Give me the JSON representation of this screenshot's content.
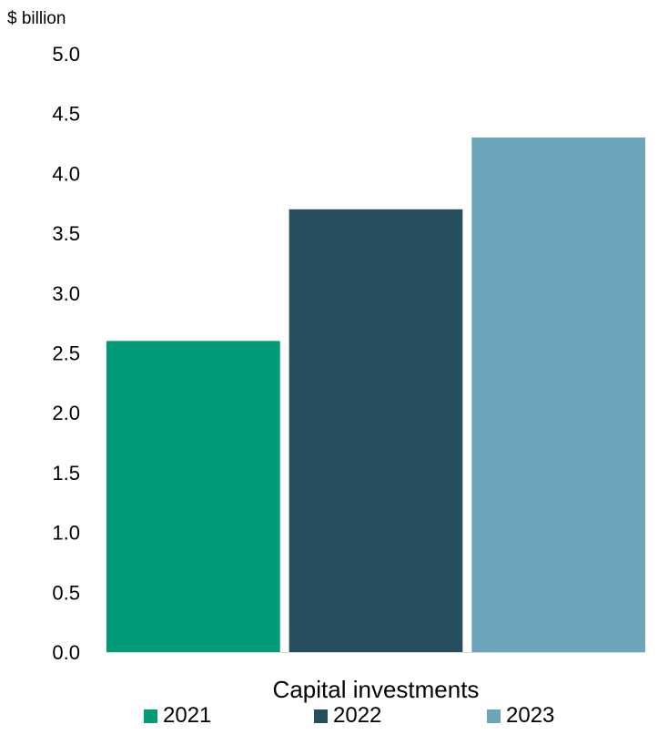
{
  "chart_data": {
    "type": "bar",
    "ylabel": "$ billion",
    "xlabel": "",
    "categories": [
      "Capital investments"
    ],
    "series": [
      {
        "name": "2021",
        "values": [
          2.6
        ],
        "color": "#009b77"
      },
      {
        "name": "2022",
        "values": [
          3.7
        ],
        "color": "#264e5c"
      },
      {
        "name": "2023",
        "values": [
          4.3
        ],
        "color": "#6ca5bb"
      }
    ],
    "ylim": [
      0,
      5.0
    ],
    "yticks": [
      "0.0",
      "0.5",
      "1.0",
      "1.5",
      "2.0",
      "2.5",
      "3.0",
      "3.5",
      "4.0",
      "4.5",
      "5.0"
    ],
    "grid": false,
    "legend_position": "bottom"
  }
}
